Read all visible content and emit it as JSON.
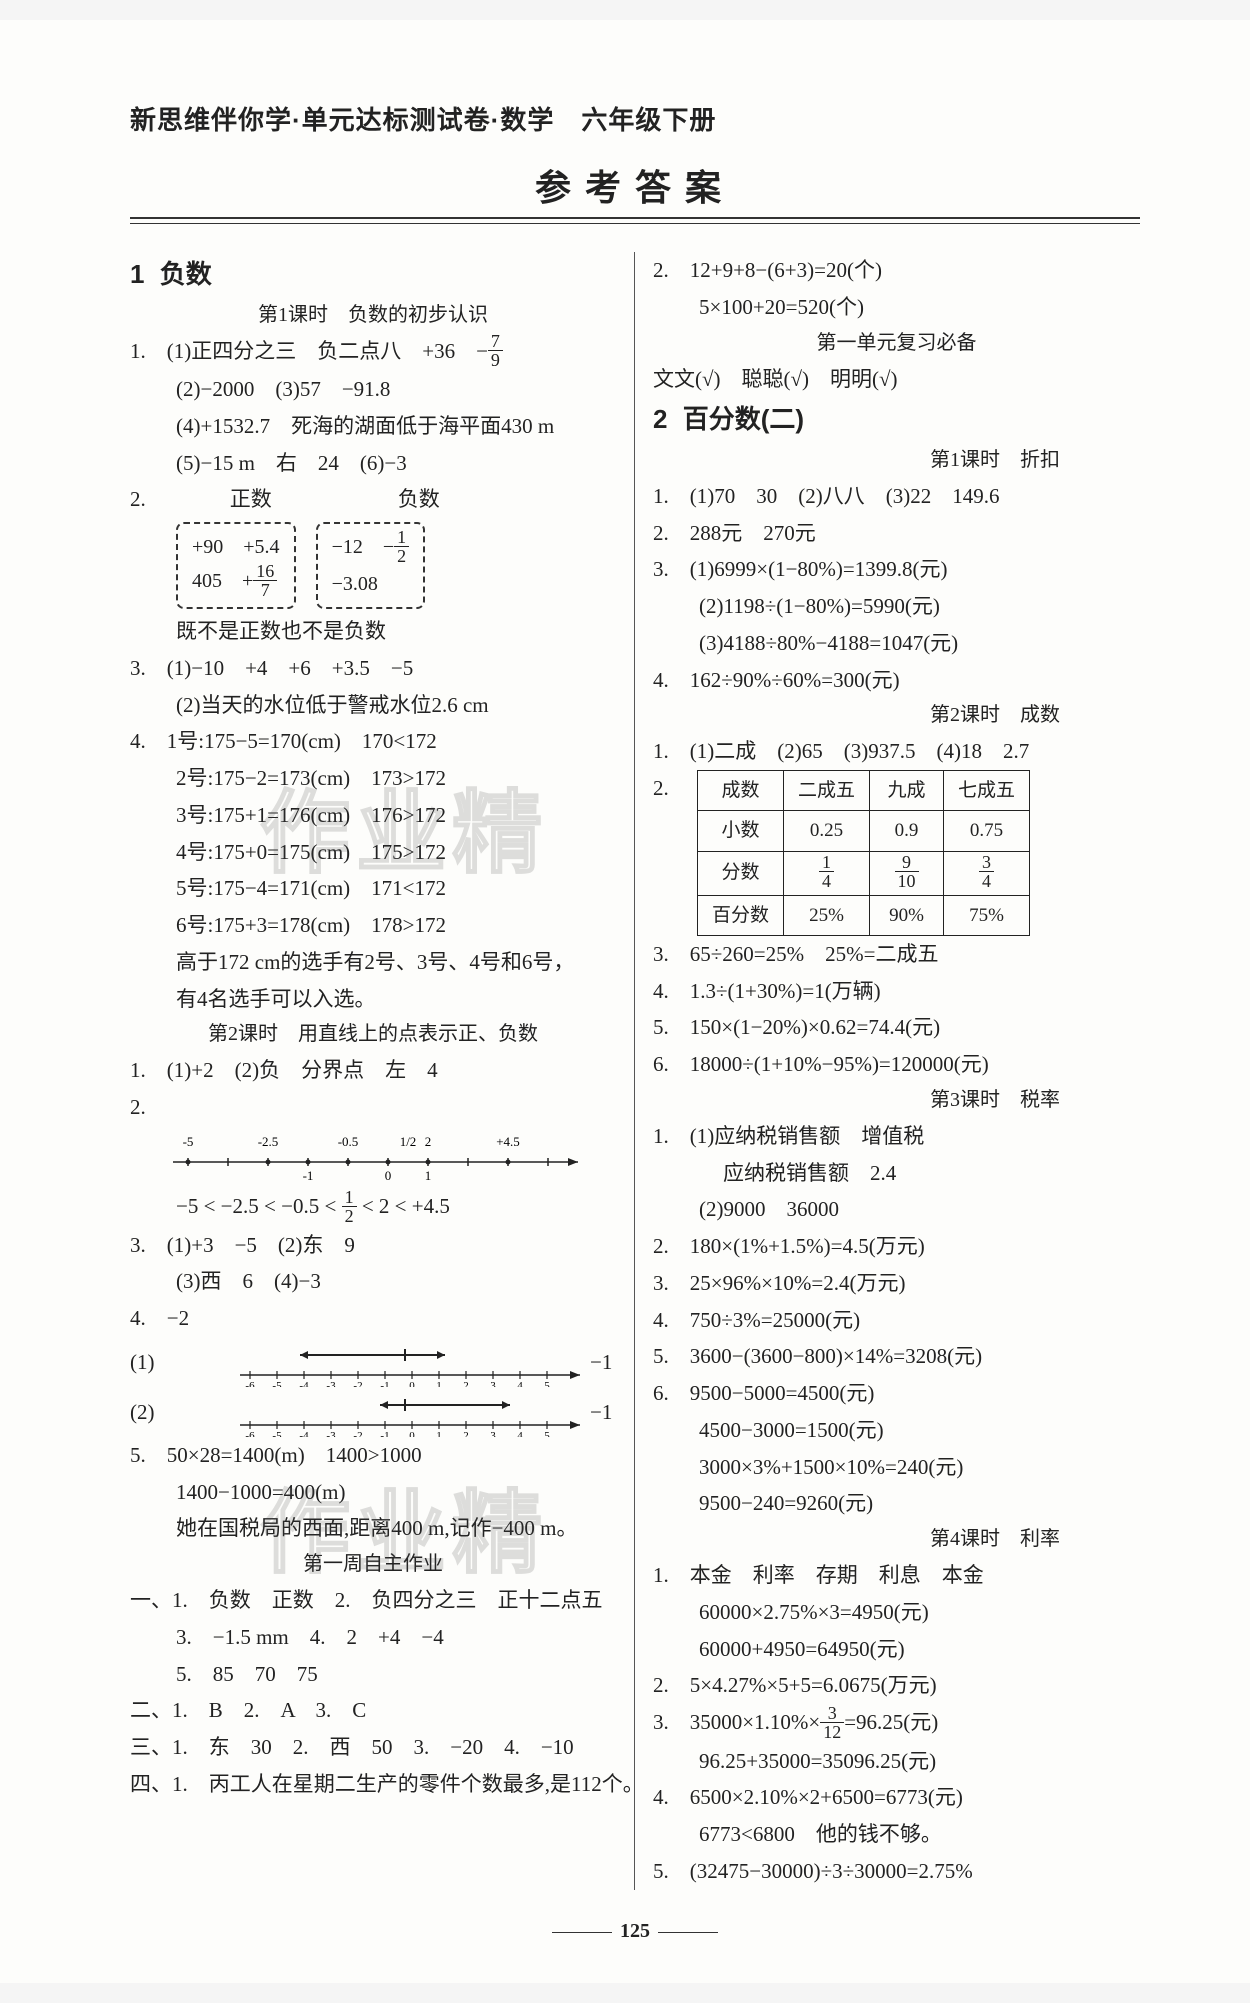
{
  "book_title": "新思维伴你学·单元达标测试卷·数学　六年级下册",
  "main_title": "参考答案",
  "page_number": "125",
  "watermarks": {
    "w1": "作业精",
    "w2": "作业精"
  },
  "left": {
    "ch1_num": "1",
    "ch1_title": "负数",
    "lesson1": "第1课时　负数的初步认识",
    "l1": "1.　(1)正四分之三　负二点八　+36　−",
    "frac1_n": "7",
    "frac1_d": "9",
    "l2": "(2)−2000　(3)57　−91.8",
    "l3": "(4)+1532.7　死海的湖面低于海平面430 m",
    "l4": "(5)−15 m　右　24　(6)−3",
    "l5": "2.　　　　正数　　　　　　负数",
    "box_pos_1": "+90　+5.4",
    "box_pos_2": "405　+",
    "box_pos_frac_n": "16",
    "box_pos_frac_d": "7",
    "box_neg_1": "−12　−",
    "box_neg_frac_n": "1",
    "box_neg_frac_d": "2",
    "box_neg_2": "−3.08",
    "l6": "既不是正数也不是负数",
    "l7": "3.　(1)−10　+4　+6　+3.5　−5",
    "l8": "(2)当天的水位低于警戒水位2.6 cm",
    "l9": "4.　1号:175−5=170(cm)　170<172",
    "l10": "2号:175−2=173(cm)　173>172",
    "l11": "3号:175+1=176(cm)　176>172",
    "l12": "4号:175+0=175(cm)　175>172",
    "l13": "5号:175−4=171(cm)　171<172",
    "l14": "6号:175+3=178(cm)　178>172",
    "l15": "高于172 cm的选手有2号、3号、4号和6号，",
    "l16": "有4名选手可以入选。",
    "lesson2": "第2课时　用直线上的点表示正、负数",
    "l17": "1.　(1)+2　(2)负　分界点　左　4",
    "l18": "2.",
    "nl_ticks": [
      "-5",
      "",
      "-2.5",
      "",
      "-0.5",
      "",
      "2",
      "",
      "+4.5"
    ],
    "nl_ticks2": [
      "",
      "",
      "",
      "-1",
      "",
      "0",
      "1",
      "",
      "",
      ""
    ],
    "nl_frac_n": "1",
    "nl_frac_d": "2",
    "l19": "−5 < −2.5 < −0.5 < ",
    "l19b": " < 2 < +4.5",
    "l20": "3.　(1)+3　−5　(2)东　9",
    "l21": "(3)西　6　(4)−3",
    "l22": "4.　−2",
    "arrow_ticks": "-6-5-4-3-2-1 0 1 2 3 4 5",
    "l23_label": "(1)",
    "l23_end": "−1",
    "l24_label": "(2)",
    "l24_end": "−1",
    "l25": "5.　50×28=1400(m)　1400>1000",
    "l26": "1400−1000=400(m)",
    "l27": "她在国税局的西面,距离400 m,记作−400 m。",
    "lesson3": "第一周自主作业",
    "l28": "一、1.　负数　正数　2.　负四分之三　正十二点五",
    "l29": "3.　−1.5 mm　4.　2　+4　−4",
    "l30": "5.　85　70　75",
    "l31": "二、1.　B　2.　A　3.　C",
    "l32": "三、1.　东　30　2.　西　50　3.　−20　4.　−10",
    "l33": "四、1.　丙工人在星期二生产的零件个数最多,是112个。"
  },
  "right": {
    "r1": "2.　12+9+8−(6+3)=20(个)",
    "r2": "5×100+20=520(个)",
    "lessonA": "第一单元复习必备",
    "r3": "文文(√)　聪聪(√)　明明(√)",
    "ch2_num": "2",
    "ch2_title": "百分数(二)",
    "lessonB": "第1课时　折扣",
    "r4": "1.　(1)70　30　(2)八八　(3)22　149.6",
    "r5": "2.　288元　270元",
    "r6": "3.　(1)6999×(1−80%)=1399.8(元)",
    "r7": "(2)1198÷(1−80%)=5990(元)",
    "r8": "(3)4188÷80%−4188=1047(元)",
    "r9": "4.　162÷90%÷60%=300(元)",
    "lessonC": "第2课时　成数",
    "r10": "1.　(1)二成　(2)65　(3)937.5　(4)18　2.7",
    "r11": "2.",
    "tbl_h1": "成数",
    "tbl_h2": "二成五",
    "tbl_h3": "九成",
    "tbl_h4": "七成五",
    "tbl_r2c1": "小数",
    "tbl_r2c2": "0.25",
    "tbl_r2c3": "0.9",
    "tbl_r2c4": "0.75",
    "tbl_r3c1": "分数",
    "tbl_f1n": "1",
    "tbl_f1d": "4",
    "tbl_f2n": "9",
    "tbl_f2d": "10",
    "tbl_f3n": "3",
    "tbl_f3d": "4",
    "tbl_r4c1": "百分数",
    "tbl_r4c2": "25%",
    "tbl_r4c3": "90%",
    "tbl_r4c4": "75%",
    "r12": "3.　65÷260=25%　25%=二成五",
    "r13": "4.　1.3÷(1+30%)=1(万辆)",
    "r14": "5.　150×(1−20%)×0.62=74.4(元)",
    "r15": "6.　18000÷(1+10%−95%)=120000(元)",
    "lessonD": "第3课时　税率",
    "r16": "1.　(1)应纳税销售额　增值税",
    "r17": "应纳税销售额　2.4",
    "r18": "(2)9000　36000",
    "r19": "2.　180×(1%+1.5%)=4.5(万元)",
    "r20": "3.　25×96%×10%=2.4(万元)",
    "r21": "4.　750÷3%=25000(元)",
    "r22": "5.　3600−(3600−800)×14%=3208(元)",
    "r23": "6.　9500−5000=4500(元)",
    "r24": "4500−3000=1500(元)",
    "r25": "3000×3%+1500×10%=240(元)",
    "r26": "9500−240=9260(元)",
    "lessonE": "第4课时　利率",
    "r27": "1.　本金　利率　存期　利息　本金",
    "r28": "60000×2.75%×3=4950(元)",
    "r29": "60000+4950=64950(元)",
    "r30": "2.　5×4.27%×5+5=6.0675(万元)",
    "r31": "3.　35000×1.10%×",
    "r31_fn": "3",
    "r31_fd": "12",
    "r31b": "=96.25(元)",
    "r32": "96.25+35000=35096.25(元)",
    "r33": "4.　6500×2.10%×2+6500=6773(元)",
    "r34": "6773<6800　他的钱不够。",
    "r35": "5.　(32475−30000)÷3÷30000=2.75%"
  }
}
